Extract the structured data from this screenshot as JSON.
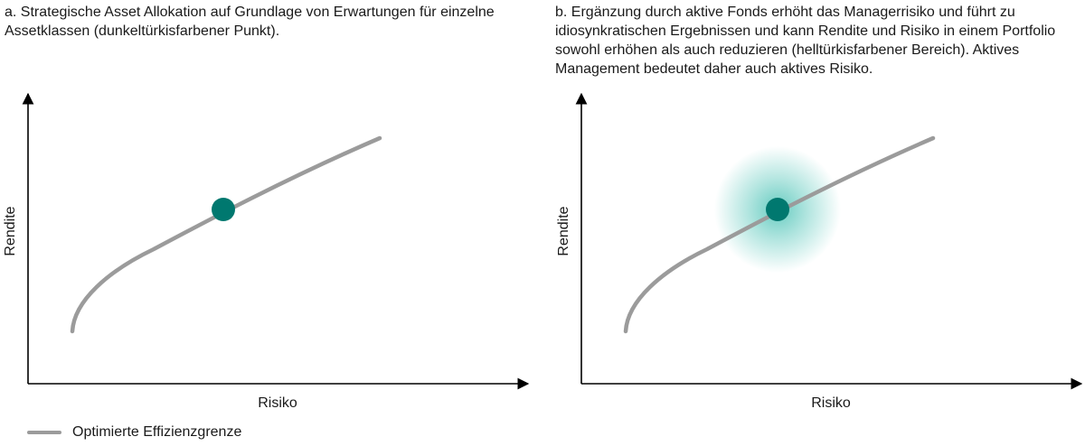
{
  "colors": {
    "curve": "#9b9b9b",
    "dot": "#00786f",
    "halo": "#4cc3b6",
    "axis": "#000000"
  },
  "panel_a": {
    "caption": "a. Strategische Asset Allokation auf Grundlage von Erwartungen für einzelne Assetklassen (dunkeltürkisfarbener Punkt).",
    "xlabel": "Risiko",
    "ylabel": "Rendite"
  },
  "panel_b": {
    "caption": "b. Ergänzung durch aktive Fonds erhöht das Managerrisiko und führt zu idiosynkratischen Ergebnissen und kann Rendite und Risiko in einem Portfolio sowohl erhöhen als auch reduzieren (helltürkisfarbener Bereich). Aktives Management bedeutet daher auch aktives Risiko.",
    "xlabel": "Risiko",
    "ylabel": "Rendite"
  },
  "legend": {
    "label": "Optimierte Effizienzgrenze"
  }
}
